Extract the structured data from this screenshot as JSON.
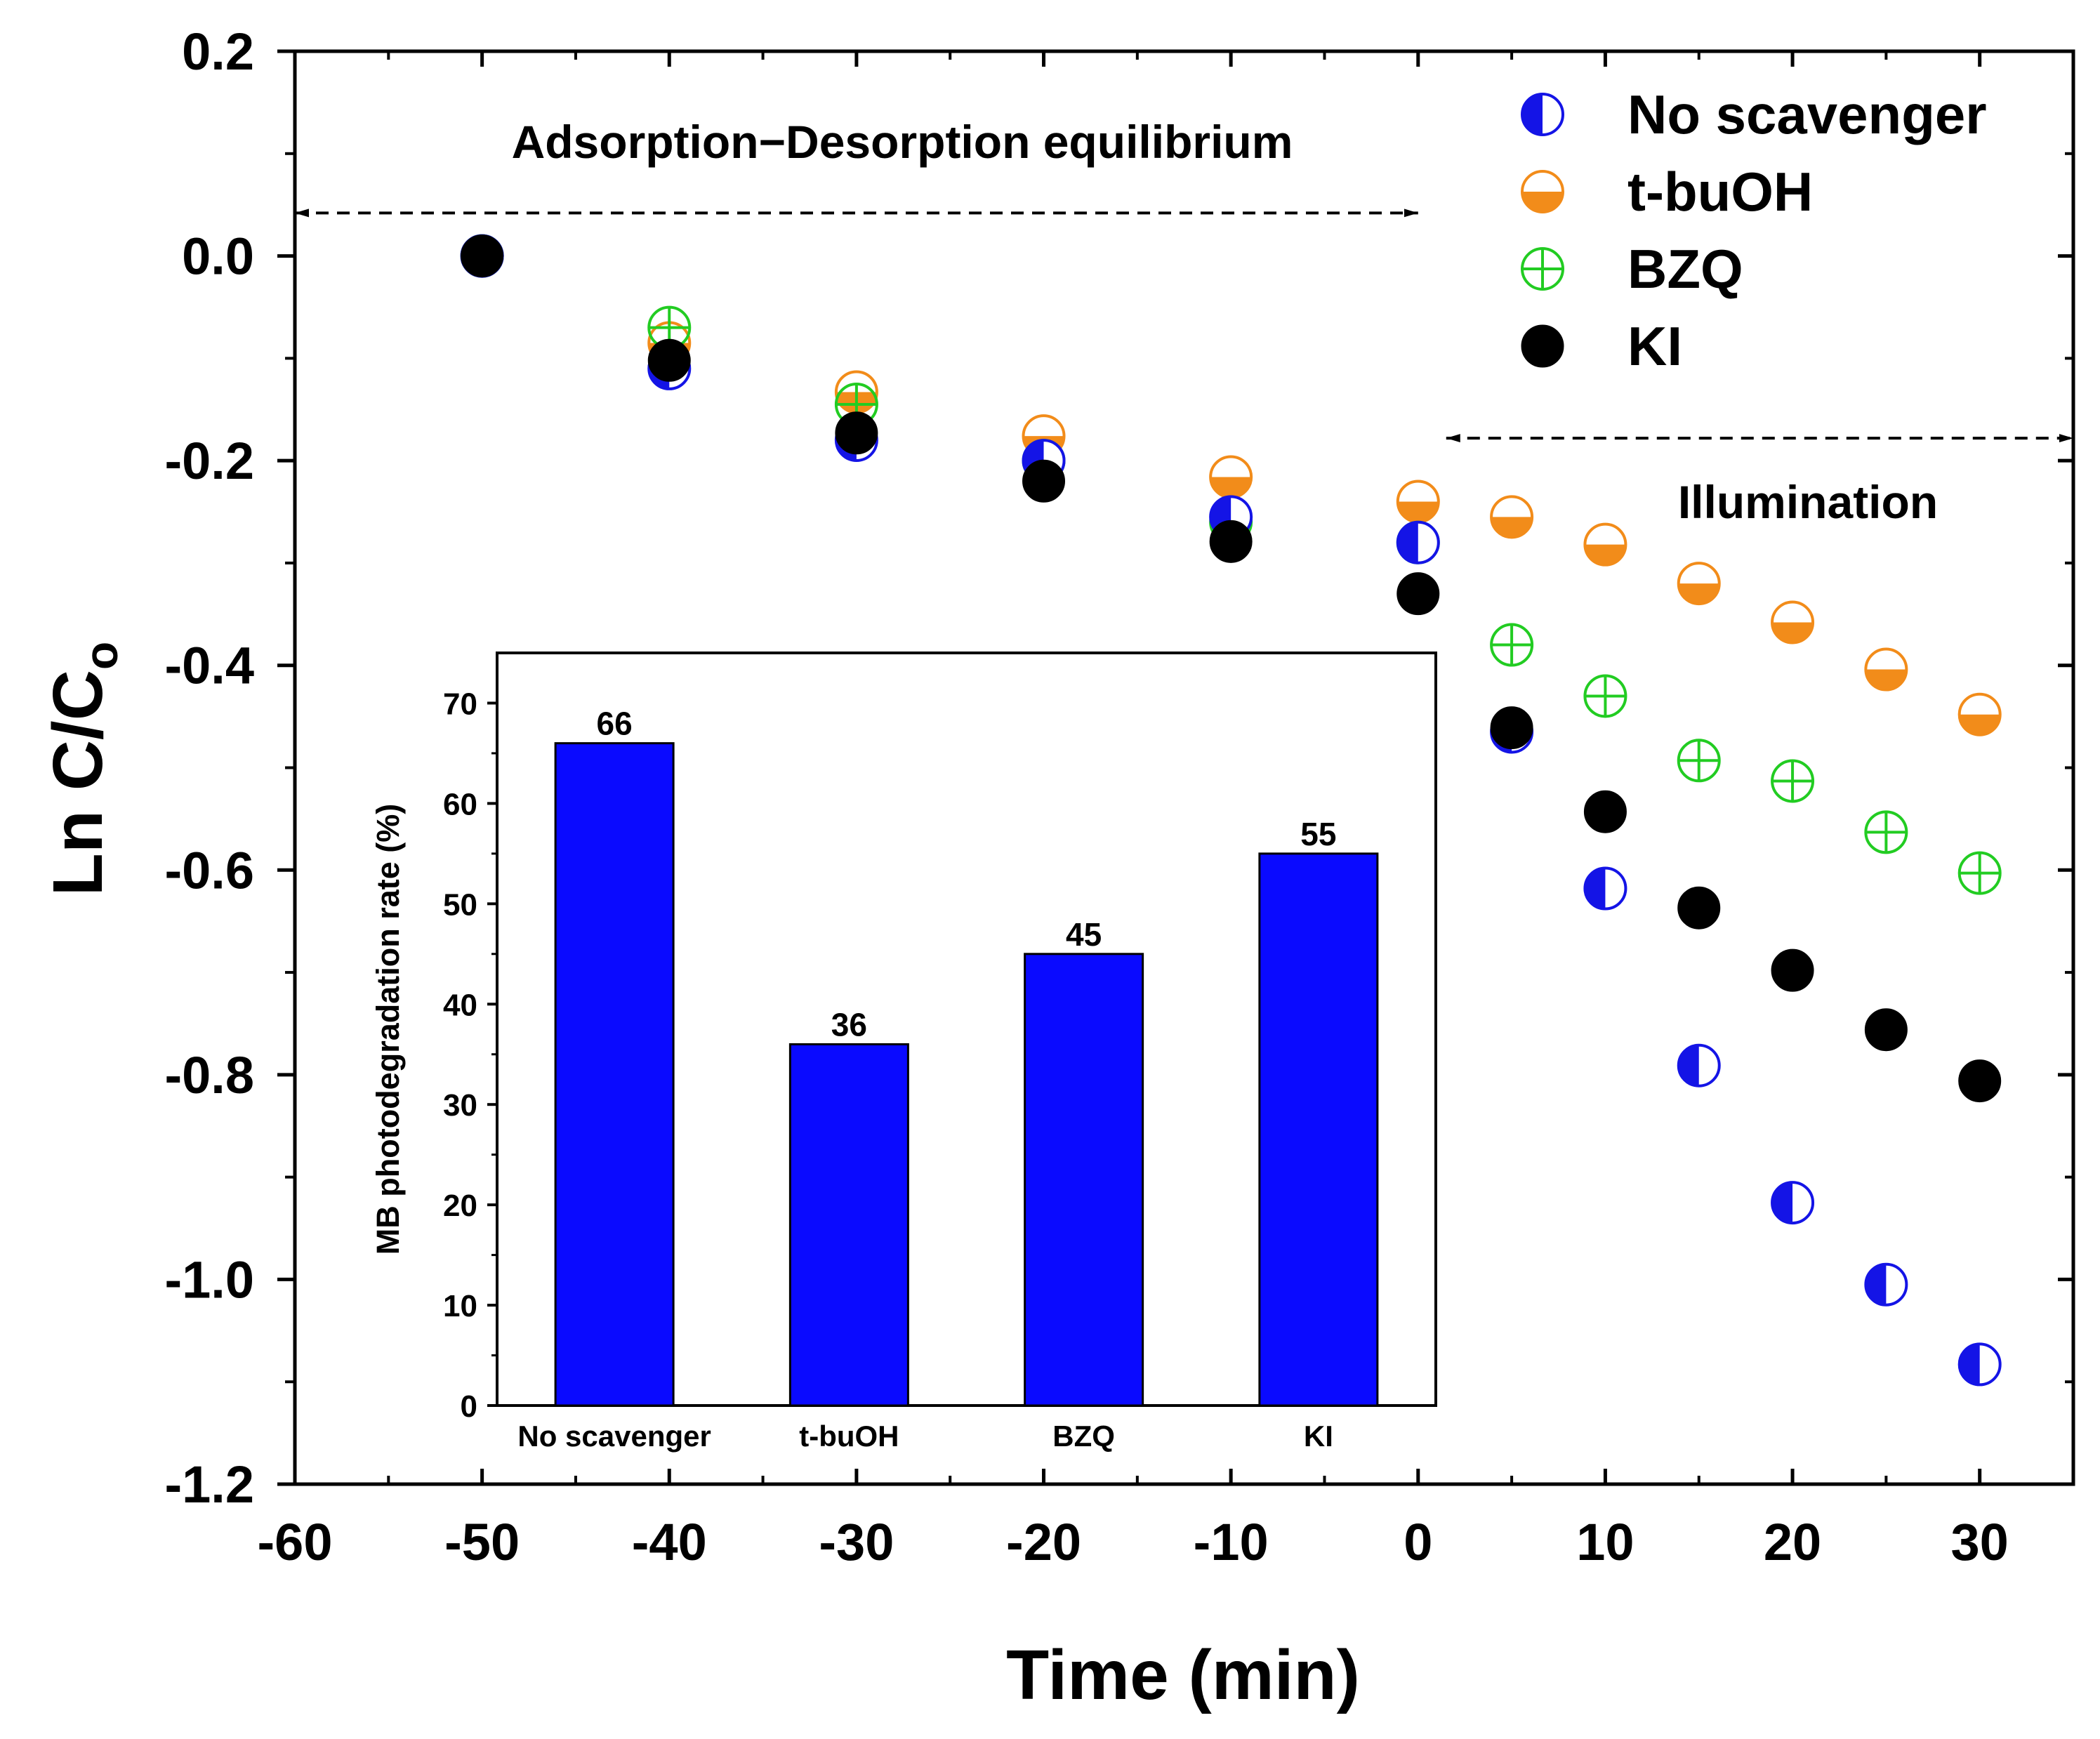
{
  "chart_data": [
    {
      "type": "scatter",
      "title": "",
      "xlabel": "Time (min)",
      "ylabel": "Ln C/C",
      "ylabel_subscript": "o",
      "xlim": [
        -60,
        35
      ],
      "ylim": [
        -1.2,
        0.2
      ],
      "x_ticks": [
        "-60",
        "-50",
        "-40",
        "-30",
        "-20",
        "-10",
        "0",
        "10",
        "20",
        "30"
      ],
      "y_ticks": [
        "0.2",
        "0.0",
        "-0.2",
        "-0.4",
        "-0.6",
        "-0.8",
        "-1.0",
        "-1.2"
      ],
      "legend_position": "top-right",
      "series": [
        {
          "name": "No scavenger",
          "marker": "half-filled-left",
          "color": "#1414e6",
          "x": [
            -50,
            -40,
            -30,
            -20,
            -10,
            0,
            5,
            10,
            15,
            20,
            25,
            30
          ],
          "y": [
            0,
            -0.11,
            -0.18,
            -0.2,
            -0.255,
            -0.28,
            -0.465,
            -0.618,
            -0.791,
            -0.925,
            -1.005,
            -1.083
          ]
        },
        {
          "name": "t-buOH",
          "marker": "half-filled-bottom",
          "color": "#f28c1a",
          "x": [
            -50,
            -40,
            -30,
            -20,
            -10,
            0,
            5,
            10,
            15,
            20,
            25,
            30
          ],
          "y": [
            0,
            -0.085,
            -0.133,
            -0.176,
            -0.216,
            -0.24,
            -0.255,
            -0.282,
            -0.32,
            -0.358,
            -0.404,
            -0.448
          ]
        },
        {
          "name": "BZQ",
          "marker": "circle-plus",
          "color": "#22cc22",
          "x": [
            -50,
            -40,
            -30,
            -20,
            -10,
            0,
            5,
            10,
            15,
            20,
            25,
            30
          ],
          "y": [
            0,
            -0.07,
            -0.145,
            -0.2,
            -0.26,
            -0.28,
            -0.38,
            -0.43,
            -0.493,
            -0.513,
            -0.563,
            -0.603
          ]
        },
        {
          "name": "KI",
          "marker": "filled-circle",
          "color": "#000000",
          "x": [
            -50,
            -40,
            -30,
            -20,
            -10,
            0,
            5,
            10,
            15,
            20,
            25,
            30
          ],
          "y": [
            0,
            -0.102,
            -0.173,
            -0.22,
            -0.279,
            -0.33,
            -0.461,
            -0.543,
            -0.637,
            -0.698,
            -0.756,
            -0.806
          ]
        }
      ],
      "annotations": [
        {
          "text": "Adsorption−Desorption equilibrium",
          "arrow_from_x": -60,
          "arrow_to_x": 0,
          "arrow_y": 0.042
        },
        {
          "text": "Illumination",
          "arrow_from_x": 1.5,
          "arrow_to_x": 35,
          "arrow_y": -0.178
        }
      ]
    },
    {
      "type": "bar",
      "title": "",
      "xlabel": "",
      "ylabel": "MB photodegradation rate (%)",
      "categories": [
        "No scavenger",
        "t-buOH",
        "BZQ",
        "KI"
      ],
      "values": [
        66,
        36,
        45,
        55
      ],
      "data_labels": [
        "66",
        "36",
        "45",
        "55"
      ],
      "ylim": [
        0,
        75
      ],
      "y_ticks": [
        "0",
        "10",
        "20",
        "30",
        "40",
        "50",
        "60",
        "70"
      ],
      "bar_color": "#0a0aff",
      "placement": "inset"
    }
  ]
}
